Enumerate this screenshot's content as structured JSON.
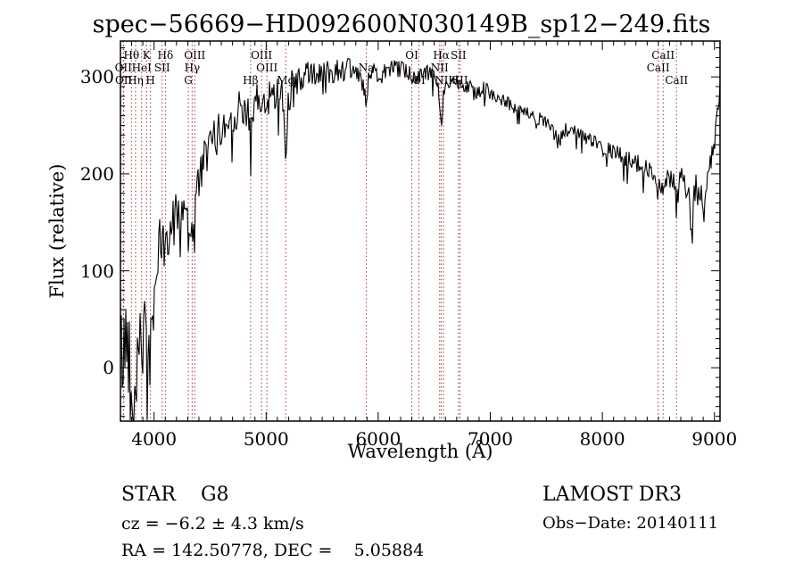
{
  "title": "spec−56669−HD092600N030149B_sp12−249.fits",
  "annotations": {
    "class_label": "STAR    G8",
    "cz": "cz = −6.2 ± 4.3 km/s",
    "radec": "RA = 142.50778, DEC =    5.05884",
    "survey": "LAMOST DR3",
    "obs_date": "Obs−Date: 20140111"
  },
  "colors": {
    "background": "#ffffff",
    "spectrum": "#000000",
    "frame": "#000000",
    "line_marker": "#9e3232",
    "text": "#000000"
  },
  "chart_data": {
    "type": "line",
    "title": "spec−56669−HD092600N030149B_sp12−249.fits",
    "xlabel": "Wavelength (Å)",
    "ylabel": "Flux (relative)",
    "xlim": [
      3700,
      9050
    ],
    "ylim": [
      -55,
      337
    ],
    "xticks": [
      4000,
      5000,
      6000,
      7000,
      8000,
      9000
    ],
    "yticks": [
      0,
      100,
      200,
      300
    ],
    "x_minor_step": 100,
    "y_minor_step": 10,
    "grid": false,
    "legend": "none",
    "noise_seed": 42,
    "spectral_lines": [
      {
        "label": "Hθ",
        "wavelength": 3798,
        "row": 1
      },
      {
        "label": "K",
        "wavelength": 3933,
        "row": 1
      },
      {
        "label": "Hδ",
        "wavelength": 4101,
        "row": 1
      },
      {
        "label": "OIII",
        "wavelength": 4363,
        "row": 1
      },
      {
        "label": "OIII",
        "wavelength": 4959,
        "row": 1
      },
      {
        "label": "OI",
        "wavelength": 6300,
        "row": 1
      },
      {
        "label": "Hα",
        "wavelength": 6563,
        "row": 1
      },
      {
        "label": "SII",
        "wavelength": 6716,
        "row": 1
      },
      {
        "label": "CaII",
        "wavelength": 8542,
        "row": 1
      },
      {
        "label": "OII",
        "wavelength": 3726,
        "row": 2
      },
      {
        "label": "HeI",
        "wavelength": 3889,
        "row": 2
      },
      {
        "label": "SII",
        "wavelength": 4072,
        "row": 2
      },
      {
        "label": "Hγ",
        "wavelength": 4340,
        "row": 2
      },
      {
        "label": "OIII",
        "wavelength": 5007,
        "row": 2
      },
      {
        "label": "Na",
        "wavelength": 5894,
        "row": 2
      },
      {
        "label": "NII",
        "wavelength": 6548,
        "row": 2
      },
      {
        "label": "CaII",
        "wavelength": 8498,
        "row": 2
      },
      {
        "label": "OII",
        "wavelength": 3729,
        "row": 3
      },
      {
        "label": "Hη",
        "wavelength": 3835,
        "row": 3
      },
      {
        "label": "H",
        "wavelength": 3968,
        "row": 3
      },
      {
        "label": "G",
        "wavelength": 4305,
        "row": 3
      },
      {
        "label": "Hβ",
        "wavelength": 4861,
        "row": 3
      },
      {
        "label": "Mg",
        "wavelength": 5175,
        "row": 3
      },
      {
        "label": "OI",
        "wavelength": 6363,
        "row": 3
      },
      {
        "label": "NII",
        "wavelength": 6583,
        "row": 3
      },
      {
        "label": "SII",
        "wavelength": 6731,
        "row": 3
      },
      {
        "label": "CaII",
        "wavelength": 8662,
        "row": 3
      }
    ],
    "spectrum_anchors": [
      [
        3700,
        25
      ],
      [
        3726,
        5
      ],
      [
        3750,
        40
      ],
      [
        3775,
        20
      ],
      [
        3798,
        -5
      ],
      [
        3820,
        -25
      ],
      [
        3835,
        -10
      ],
      [
        3860,
        45
      ],
      [
        3889,
        25
      ],
      [
        3910,
        40
      ],
      [
        3933,
        0
      ],
      [
        3950,
        30
      ],
      [
        3968,
        10
      ],
      [
        3990,
        60
      ],
      [
        4020,
        105
      ],
      [
        4060,
        125
      ],
      [
        4090,
        130
      ],
      [
        4101,
        100
      ],
      [
        4115,
        130
      ],
      [
        4160,
        150
      ],
      [
        4210,
        160
      ],
      [
        4260,
        170
      ],
      [
        4290,
        168
      ],
      [
        4305,
        120
      ],
      [
        4320,
        150
      ],
      [
        4340,
        140
      ],
      [
        4355,
        160
      ],
      [
        4380,
        185
      ],
      [
        4430,
        205
      ],
      [
        4480,
        225
      ],
      [
        4530,
        235
      ],
      [
        4590,
        245
      ],
      [
        4650,
        252
      ],
      [
        4720,
        262
      ],
      [
        4790,
        270
      ],
      [
        4835,
        268
      ],
      [
        4853,
        250
      ],
      [
        4861,
        190
      ],
      [
        4872,
        250
      ],
      [
        4900,
        272
      ],
      [
        4940,
        275
      ],
      [
        4959,
        268
      ],
      [
        4980,
        276
      ],
      [
        5007,
        262
      ],
      [
        5030,
        280
      ],
      [
        5080,
        285
      ],
      [
        5130,
        286
      ],
      [
        5160,
        275
      ],
      [
        5175,
        196
      ],
      [
        5192,
        275
      ],
      [
        5230,
        290
      ],
      [
        5290,
        296
      ],
      [
        5350,
        300
      ],
      [
        5420,
        303
      ],
      [
        5500,
        304
      ],
      [
        5600,
        307
      ],
      [
        5700,
        308
      ],
      [
        5800,
        307
      ],
      [
        5860,
        298
      ],
      [
        5894,
        268
      ],
      [
        5915,
        296
      ],
      [
        5970,
        305
      ],
      [
        6050,
        308
      ],
      [
        6130,
        308
      ],
      [
        6210,
        306
      ],
      [
        6280,
        303
      ],
      [
        6300,
        292
      ],
      [
        6315,
        302
      ],
      [
        6380,
        304
      ],
      [
        6440,
        303
      ],
      [
        6500,
        300
      ],
      [
        6540,
        285
      ],
      [
        6563,
        248
      ],
      [
        6585,
        285
      ],
      [
        6620,
        297
      ],
      [
        6680,
        297
      ],
      [
        6740,
        294
      ],
      [
        6800,
        291
      ],
      [
        6860,
        283
      ],
      [
        6890,
        287
      ],
      [
        6950,
        287
      ],
      [
        7020,
        283
      ],
      [
        7100,
        277
      ],
      [
        7180,
        271
      ],
      [
        7260,
        266
      ],
      [
        7340,
        261
      ],
      [
        7420,
        257
      ],
      [
        7500,
        252
      ],
      [
        7580,
        240
      ],
      [
        7615,
        231
      ],
      [
        7650,
        243
      ],
      [
        7720,
        245
      ],
      [
        7800,
        241
      ],
      [
        7880,
        235
      ],
      [
        7960,
        229
      ],
      [
        8040,
        225
      ],
      [
        8120,
        221
      ],
      [
        8200,
        216
      ],
      [
        8280,
        211
      ],
      [
        8360,
        207
      ],
      [
        8440,
        203
      ],
      [
        8480,
        196
      ],
      [
        8498,
        182
      ],
      [
        8515,
        196
      ],
      [
        8542,
        176
      ],
      [
        8565,
        193
      ],
      [
        8600,
        194
      ],
      [
        8640,
        190
      ],
      [
        8662,
        166
      ],
      [
        8685,
        192
      ],
      [
        8720,
        193
      ],
      [
        8755,
        188
      ],
      [
        8790,
        152
      ],
      [
        8815,
        190
      ],
      [
        8845,
        180
      ],
      [
        8875,
        188
      ],
      [
        8905,
        160
      ],
      [
        8930,
        195
      ],
      [
        8960,
        210
      ],
      [
        8990,
        222
      ],
      [
        9015,
        245
      ],
      [
        9035,
        270
      ],
      [
        9050,
        285
      ]
    ],
    "noise_envelope": [
      [
        3700,
        50
      ],
      [
        3800,
        48
      ],
      [
        3900,
        45
      ],
      [
        3990,
        38
      ],
      [
        4100,
        30
      ],
      [
        4200,
        27
      ],
      [
        4350,
        24
      ],
      [
        4500,
        22
      ],
      [
        4700,
        20
      ],
      [
        4900,
        20
      ],
      [
        5100,
        19
      ],
      [
        5300,
        17
      ],
      [
        5500,
        14
      ],
      [
        5700,
        12
      ],
      [
        5900,
        11
      ],
      [
        6100,
        10
      ],
      [
        6300,
        10
      ],
      [
        6563,
        9
      ],
      [
        6750,
        8
      ],
      [
        7000,
        8
      ],
      [
        7300,
        7
      ],
      [
        7600,
        9
      ],
      [
        7900,
        8
      ],
      [
        8200,
        10
      ],
      [
        8450,
        12
      ],
      [
        8600,
        12
      ],
      [
        8790,
        18
      ],
      [
        8905,
        16
      ],
      [
        9000,
        12
      ],
      [
        9050,
        10
      ]
    ]
  }
}
